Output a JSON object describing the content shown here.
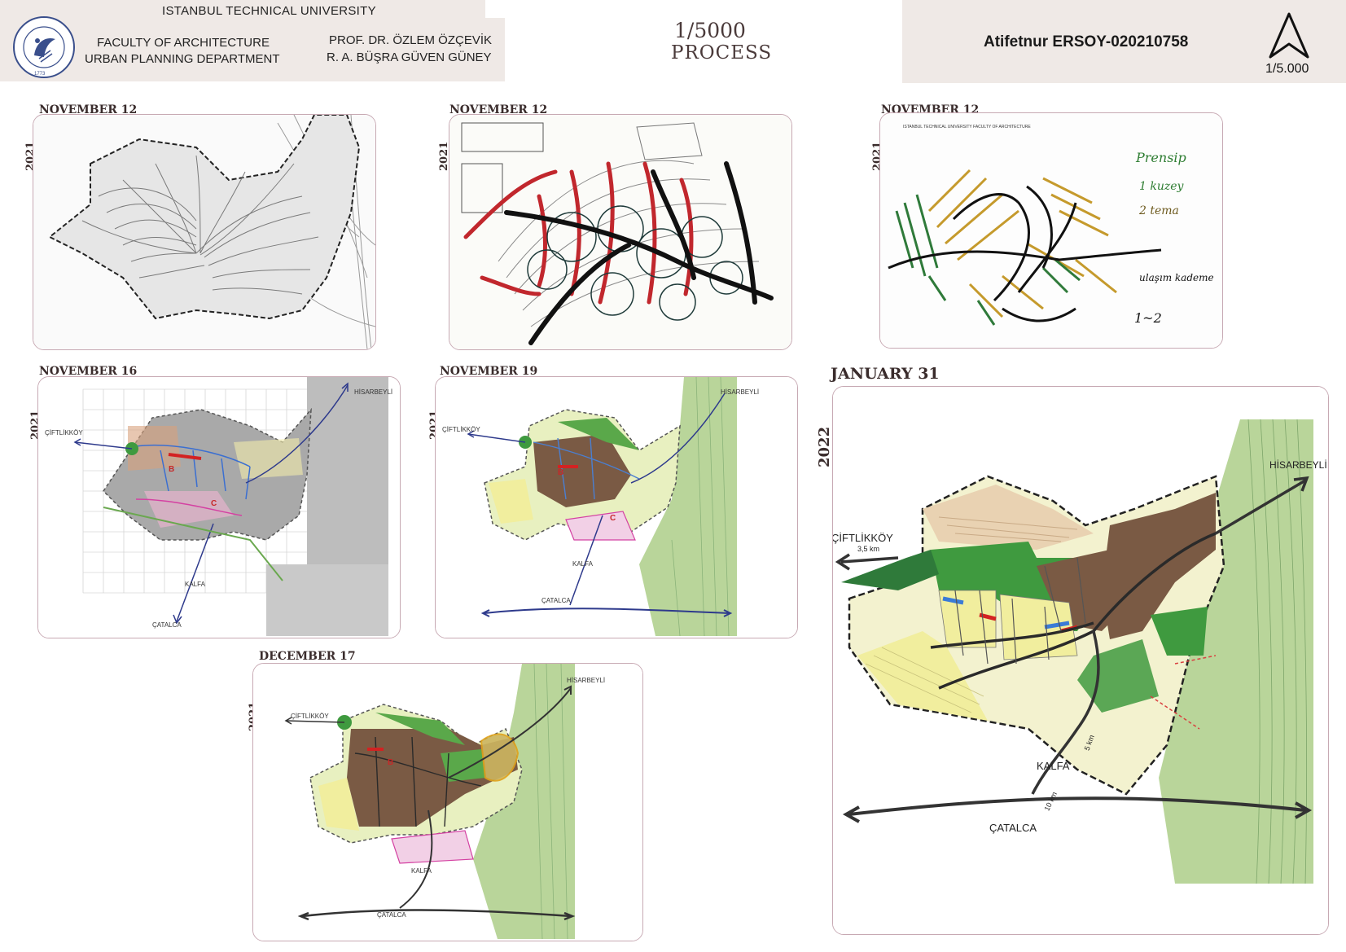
{
  "header": {
    "university": "ISTANBUL TECHNICAL UNIVERSITY",
    "faculty_line1": "FACULTY OF ARCHITECTURE",
    "faculty_line2": "URBAN PLANNING DEPARTMENT",
    "instructor1": "PROF. DR. ÖZLEM ÖZÇEVİK",
    "instructor2": "R. A. BÜŞRA GÜVEN GÜNEY",
    "scale_title": "1/5000",
    "process_title": "PROCESS",
    "student": "Atifetnur ERSOY-020210758",
    "north_scale": "1/5.000",
    "logo_text": "ISTANBUL TEKNIK ÜNİVERSİTESİ",
    "logo_year": "1773"
  },
  "panels": [
    {
      "id": "p1",
      "year": "2021",
      "date": "NOVEMBER 12"
    },
    {
      "id": "p2",
      "year": "2021",
      "date": "NOVEMBER 12"
    },
    {
      "id": "p3",
      "year": "2021",
      "date": "NOVEMBER 12"
    },
    {
      "id": "p4",
      "year": "2021",
      "date": "NOVEMBER 16"
    },
    {
      "id": "p5",
      "year": "2021",
      "date": "NOVEMBER 19"
    },
    {
      "id": "p6",
      "year": "2022",
      "date": "JANUARY 31"
    },
    {
      "id": "p7",
      "year": "2021",
      "date": "DECEMBER 17"
    }
  ],
  "map_labels": {
    "ciftlikkoy": "ÇİFTLİKKÖY",
    "hisarbeyli": "HİSARBEYLİ",
    "kalfa": "KALFA",
    "catalca": "ÇATALCA",
    "dist_ciftlikkoy": "3,5 km",
    "dist_kalfa": "5 km",
    "dist_catalca": "10 km",
    "zone_b": "B",
    "zone_c": "C"
  },
  "sketch_notes": {
    "note1": "Prensip",
    "note2": "1 kuzey",
    "note3": "2 tema",
    "note4": "ulaşım kademe",
    "note5": "1~2",
    "sheet_head": "ISTANBUL TECHNICAL UNIVERSITY   FACULTY OF ARCHITECTURE"
  },
  "colors": {
    "header_bg": "#efe9e6",
    "card_border": "#c7a9b3",
    "brown": "#7a5a44",
    "green": "#3f9a3f",
    "yellow": "#f1ee9e",
    "road": "#333333"
  }
}
